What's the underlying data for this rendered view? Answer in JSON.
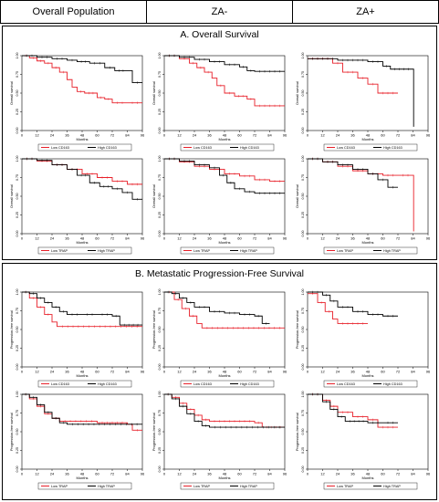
{
  "headers": [
    "Overall Population",
    "ZA-",
    "ZA+"
  ],
  "sections": {
    "a_title": "A. Overall Survival",
    "b_title": "B. Metastatic Progression-Free Survival"
  },
  "colors": {
    "low": "#e8202a",
    "high": "#000000"
  },
  "chart_data": [
    {
      "id": "A11",
      "type": "line",
      "section": "A",
      "column": "Overall Population",
      "ylabel": "Overall survival",
      "xlabel": "Months",
      "xlim": [
        0,
        96
      ],
      "xticks": [
        0,
        12,
        24,
        36,
        48,
        60,
        72,
        84,
        96
      ],
      "ylim": [
        0,
        1
      ],
      "yticks": [
        "0.00",
        "0.25",
        "0.50",
        "0.75",
        "1.00"
      ],
      "legend": [
        "Low CD163",
        "High CD163"
      ],
      "series": [
        {
          "name": "Low CD163",
          "color": "red",
          "x": [
            0,
            6,
            12,
            18,
            24,
            30,
            36,
            40,
            44,
            50,
            60,
            66,
            72,
            84,
            96
          ],
          "y": [
            1.0,
            0.97,
            0.93,
            0.9,
            0.84,
            0.78,
            0.68,
            0.58,
            0.52,
            0.5,
            0.44,
            0.42,
            0.37,
            0.37,
            0.37
          ]
        },
        {
          "name": "High CD163",
          "color": "black",
          "x": [
            0,
            12,
            24,
            36,
            44,
            54,
            66,
            74,
            84,
            88,
            96
          ],
          "y": [
            1.0,
            0.98,
            0.96,
            0.94,
            0.92,
            0.9,
            0.84,
            0.8,
            0.8,
            0.64,
            0.64
          ]
        }
      ]
    },
    {
      "id": "A12",
      "type": "line",
      "section": "A",
      "column": "ZA-",
      "ylabel": "Overall survival",
      "xlabel": "Months",
      "xlim": [
        0,
        96
      ],
      "xticks": [
        0,
        12,
        24,
        36,
        48,
        60,
        72,
        84,
        96
      ],
      "ylim": [
        0,
        1
      ],
      "yticks": [
        "0.00",
        "0.25",
        "0.50",
        "0.75",
        "1.00"
      ],
      "legend": [
        "Low CD163",
        "High CD163"
      ],
      "series": [
        {
          "name": "Low CD163",
          "color": "red",
          "x": [
            0,
            12,
            20,
            26,
            32,
            38,
            42,
            48,
            56,
            66,
            72,
            96
          ],
          "y": [
            1.0,
            0.96,
            0.9,
            0.84,
            0.78,
            0.7,
            0.6,
            0.5,
            0.46,
            0.42,
            0.33,
            0.33
          ]
        },
        {
          "name": "High CD163",
          "color": "black",
          "x": [
            0,
            12,
            24,
            36,
            48,
            60,
            66,
            72,
            96
          ],
          "y": [
            1.0,
            0.98,
            0.95,
            0.92,
            0.88,
            0.85,
            0.8,
            0.79,
            0.79
          ]
        }
      ]
    },
    {
      "id": "A13",
      "type": "line",
      "section": "A",
      "column": "ZA+",
      "ylabel": "Overall survival",
      "xlabel": "Months",
      "xlim": [
        0,
        96
      ],
      "xticks": [
        0,
        12,
        24,
        36,
        48,
        60,
        72,
        84,
        96
      ],
      "ylim": [
        0,
        1
      ],
      "yticks": [
        "0.00",
        "0.25",
        "0.50",
        "0.75",
        "1.00"
      ],
      "legend": [
        "Low CD163",
        "High CD163"
      ],
      "series": [
        {
          "name": "Low CD163",
          "color": "red",
          "x": [
            0,
            20,
            28,
            40,
            48,
            56,
            72
          ],
          "y": [
            0.96,
            0.9,
            0.78,
            0.7,
            0.62,
            0.5,
            0.5
          ]
        },
        {
          "name": "High CD163",
          "color": "black",
          "x": [
            0,
            24,
            48,
            60,
            66,
            84,
            84.5
          ],
          "y": [
            0.96,
            0.94,
            0.92,
            0.86,
            0.82,
            0.82,
            0.05
          ]
        }
      ]
    },
    {
      "id": "A21",
      "type": "line",
      "section": "A",
      "column": "Overall Population",
      "ylabel": "Overall survival",
      "xlabel": "Months",
      "xlim": [
        0,
        96
      ],
      "xticks": [
        0,
        12,
        24,
        36,
        48,
        60,
        72,
        84,
        96
      ],
      "ylim": [
        0,
        1
      ],
      "yticks": [
        "0.00",
        "0.25",
        "0.50",
        "0.75",
        "1.00"
      ],
      "legend": [
        "Low TRAP",
        "High TRAP"
      ],
      "series": [
        {
          "name": "Low TRAP",
          "color": "red",
          "x": [
            0,
            12,
            24,
            36,
            48,
            60,
            72,
            84,
            96
          ],
          "y": [
            1.0,
            0.97,
            0.92,
            0.86,
            0.8,
            0.75,
            0.7,
            0.66,
            0.66
          ]
        },
        {
          "name": "High TRAP",
          "color": "black",
          "x": [
            0,
            12,
            24,
            36,
            44,
            54,
            62,
            72,
            80,
            88,
            96
          ],
          "y": [
            1.0,
            0.98,
            0.92,
            0.86,
            0.78,
            0.68,
            0.63,
            0.6,
            0.55,
            0.46,
            0.46
          ]
        }
      ]
    },
    {
      "id": "A22",
      "type": "line",
      "section": "A",
      "column": "ZA-",
      "ylabel": "Overall survival",
      "xlabel": "Months",
      "xlim": [
        0,
        96
      ],
      "xticks": [
        0,
        12,
        24,
        36,
        48,
        60,
        72,
        84,
        96
      ],
      "ylim": [
        0,
        1
      ],
      "yticks": [
        "0.00",
        "0.25",
        "0.50",
        "0.75",
        "1.00"
      ],
      "legend": [
        "Low TRAP",
        "High TRAP"
      ],
      "series": [
        {
          "name": "Low TRAP",
          "color": "red",
          "x": [
            0,
            12,
            24,
            36,
            48,
            60,
            72,
            84,
            96
          ],
          "y": [
            1.0,
            0.96,
            0.9,
            0.86,
            0.8,
            0.77,
            0.72,
            0.7,
            0.7
          ]
        },
        {
          "name": "High TRAP",
          "color": "black",
          "x": [
            0,
            12,
            24,
            36,
            44,
            50,
            56,
            64,
            72,
            96
          ],
          "y": [
            1.0,
            0.97,
            0.92,
            0.88,
            0.78,
            0.68,
            0.6,
            0.56,
            0.54,
            0.54
          ]
        }
      ]
    },
    {
      "id": "A23",
      "type": "line",
      "section": "A",
      "column": "ZA+",
      "ylabel": "Overall survival",
      "xlabel": "Months",
      "xlim": [
        0,
        96
      ],
      "xticks": [
        0,
        12,
        24,
        36,
        48,
        60,
        72,
        84,
        96
      ],
      "ylim": [
        0,
        1
      ],
      "yticks": [
        "0.00",
        "0.25",
        "0.50",
        "0.75",
        "1.00"
      ],
      "legend": [
        "Low TRAP",
        "High TRAP"
      ],
      "series": [
        {
          "name": "Low TRAP",
          "color": "red",
          "x": [
            0,
            12,
            24,
            36,
            48,
            60,
            72,
            84,
            84.5
          ],
          "y": [
            1.0,
            0.96,
            0.9,
            0.84,
            0.8,
            0.78,
            0.78,
            0.78,
            0.03
          ]
        },
        {
          "name": "High TRAP",
          "color": "black",
          "x": [
            0,
            12,
            24,
            36,
            48,
            56,
            64,
            72
          ],
          "y": [
            1.0,
            0.96,
            0.92,
            0.86,
            0.8,
            0.72,
            0.62,
            0.62
          ]
        }
      ]
    },
    {
      "id": "B11",
      "type": "line",
      "section": "B",
      "column": "Overall Population",
      "ylabel": "Progression-free survival",
      "xlabel": "Months",
      "xlim": [
        0,
        96
      ],
      "xticks": [
        0,
        12,
        24,
        36,
        48,
        60,
        72,
        84,
        96
      ],
      "ylim": [
        0,
        1
      ],
      "yticks": [
        "0.00",
        "0.25",
        "0.50",
        "0.75",
        "1.00"
      ],
      "legend": [
        "Low CD163",
        "High CD163"
      ],
      "series": [
        {
          "name": "Low CD163",
          "color": "red",
          "x": [
            0,
            6,
            12,
            18,
            24,
            28,
            96
          ],
          "y": [
            1.0,
            0.92,
            0.8,
            0.7,
            0.6,
            0.54,
            0.54
          ]
        },
        {
          "name": "High CD163",
          "color": "black",
          "x": [
            0,
            6,
            12,
            18,
            24,
            30,
            36,
            48,
            60,
            72,
            78,
            96
          ],
          "y": [
            1.0,
            0.98,
            0.92,
            0.86,
            0.8,
            0.74,
            0.7,
            0.7,
            0.7,
            0.68,
            0.56,
            0.56
          ]
        }
      ]
    },
    {
      "id": "B12",
      "type": "line",
      "section": "B",
      "column": "ZA-",
      "ylabel": "Progression-free survival",
      "xlabel": "Months",
      "xlim": [
        0,
        96
      ],
      "xticks": [
        0,
        12,
        24,
        36,
        48,
        60,
        72,
        84,
        96
      ],
      "ylim": [
        0,
        1
      ],
      "yticks": [
        "0.00",
        "0.25",
        "0.50",
        "0.75",
        "1.00"
      ],
      "legend": [
        "Low CD163",
        "High CD163"
      ],
      "series": [
        {
          "name": "Low CD163",
          "color": "red",
          "x": [
            0,
            8,
            14,
            20,
            26,
            30,
            96
          ],
          "y": [
            1.0,
            0.9,
            0.78,
            0.68,
            0.58,
            0.52,
            0.52
          ]
        },
        {
          "name": "High CD163",
          "color": "black",
          "x": [
            0,
            6,
            12,
            18,
            24,
            36,
            48,
            60,
            72,
            78,
            84
          ],
          "y": [
            1.0,
            0.98,
            0.92,
            0.86,
            0.8,
            0.74,
            0.72,
            0.7,
            0.68,
            0.58,
            0.58
          ]
        }
      ]
    },
    {
      "id": "B13",
      "type": "line",
      "section": "B",
      "column": "ZA+",
      "ylabel": "Progression-free survival",
      "xlabel": "Months",
      "xlim": [
        0,
        96
      ],
      "xticks": [
        0,
        12,
        24,
        36,
        48,
        60,
        72,
        84,
        96
      ],
      "ylim": [
        0,
        1
      ],
      "yticks": [
        "0.00",
        "0.25",
        "0.50",
        "0.75",
        "1.00"
      ],
      "legend": [
        "Low CD163",
        "High CD163"
      ],
      "series": [
        {
          "name": "Low CD163",
          "color": "red",
          "x": [
            0,
            8,
            14,
            20,
            24,
            48
          ],
          "y": [
            0.98,
            0.86,
            0.74,
            0.64,
            0.58,
            0.58
          ]
        },
        {
          "name": "High CD163",
          "color": "black",
          "x": [
            0,
            12,
            18,
            24,
            36,
            48,
            60,
            72
          ],
          "y": [
            1.0,
            0.96,
            0.88,
            0.8,
            0.74,
            0.7,
            0.68,
            0.68
          ]
        }
      ]
    },
    {
      "id": "B21",
      "type": "line",
      "section": "B",
      "column": "Overall Population",
      "ylabel": "Progression-free survival",
      "xlabel": "Months",
      "xlim": [
        0,
        96
      ],
      "xticks": [
        0,
        12,
        24,
        36,
        48,
        60,
        72,
        84,
        96
      ],
      "ylim": [
        0,
        1
      ],
      "yticks": [
        "0.00",
        "0.25",
        "0.50",
        "0.75",
        "1.00"
      ],
      "legend": [
        "Low TRAP",
        "High TRAP"
      ],
      "series": [
        {
          "name": "Low TRAP",
          "color": "red",
          "x": [
            0,
            6,
            12,
            18,
            24,
            30,
            60,
            84,
            88,
            96
          ],
          "y": [
            1.0,
            0.94,
            0.84,
            0.74,
            0.68,
            0.64,
            0.62,
            0.6,
            0.52,
            0.52
          ]
        },
        {
          "name": "High TRAP",
          "color": "black",
          "x": [
            0,
            6,
            12,
            18,
            24,
            30,
            36,
            96
          ],
          "y": [
            1.0,
            0.96,
            0.86,
            0.76,
            0.68,
            0.62,
            0.6,
            0.6
          ]
        }
      ]
    },
    {
      "id": "B22",
      "type": "line",
      "section": "B",
      "column": "ZA-",
      "ylabel": "Progression-free survival",
      "xlabel": "Months",
      "xlim": [
        0,
        96
      ],
      "xticks": [
        0,
        12,
        24,
        36,
        48,
        60,
        72,
        84,
        96
      ],
      "ylim": [
        0,
        1
      ],
      "yticks": [
        "0.00",
        "0.25",
        "0.50",
        "0.75",
        "1.00"
      ],
      "legend": [
        "Low TRAP",
        "High TRAP"
      ],
      "series": [
        {
          "name": "Low TRAP",
          "color": "red",
          "x": [
            0,
            6,
            12,
            18,
            24,
            30,
            36,
            72,
            78,
            96
          ],
          "y": [
            1.0,
            0.96,
            0.88,
            0.8,
            0.72,
            0.66,
            0.64,
            0.62,
            0.56,
            0.56
          ]
        },
        {
          "name": "High TRAP",
          "color": "black",
          "x": [
            0,
            6,
            12,
            18,
            24,
            30,
            36,
            96
          ],
          "y": [
            1.0,
            0.94,
            0.84,
            0.74,
            0.64,
            0.58,
            0.56,
            0.56
          ]
        }
      ]
    },
    {
      "id": "B23",
      "type": "line",
      "section": "B",
      "column": "ZA+",
      "ylabel": "Progression-free survival",
      "xlabel": "Months",
      "xlim": [
        0,
        96
      ],
      "xticks": [
        0,
        12,
        24,
        36,
        48,
        60,
        72,
        84,
        96
      ],
      "ylim": [
        0,
        1
      ],
      "yticks": [
        "0.00",
        "0.25",
        "0.50",
        "0.75",
        "1.00"
      ],
      "legend": [
        "Low TRAP",
        "High TRAP"
      ],
      "series": [
        {
          "name": "Low TRAP",
          "color": "red",
          "x": [
            0,
            12,
            18,
            24,
            36,
            48,
            56,
            72
          ],
          "y": [
            1.0,
            0.92,
            0.84,
            0.76,
            0.7,
            0.66,
            0.56,
            0.56
          ]
        },
        {
          "name": "High TRAP",
          "color": "black",
          "x": [
            0,
            12,
            18,
            24,
            30,
            48,
            60,
            72
          ],
          "y": [
            1.0,
            0.9,
            0.8,
            0.7,
            0.64,
            0.62,
            0.62,
            0.62
          ]
        }
      ]
    }
  ]
}
